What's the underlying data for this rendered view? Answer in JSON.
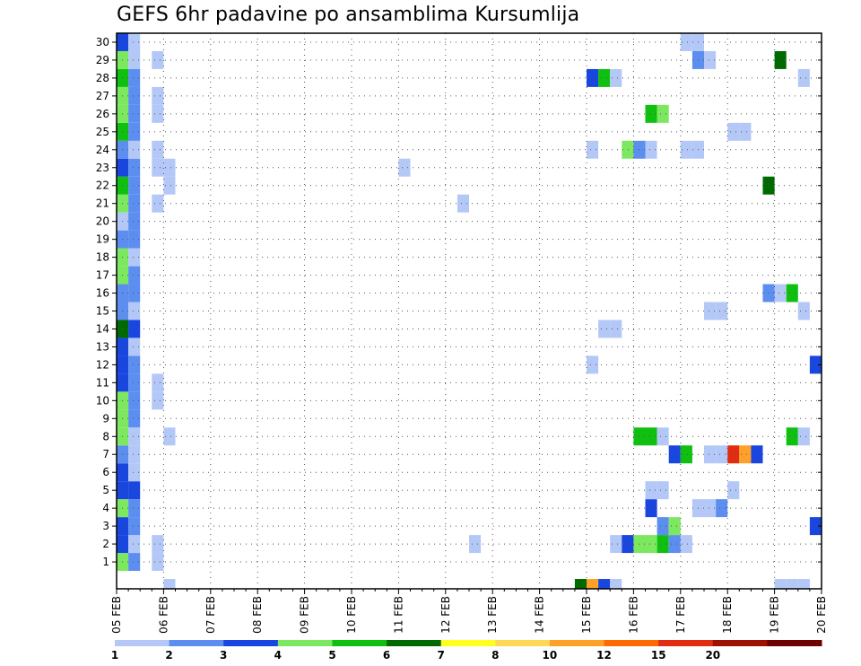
{
  "chart_data": {
    "type": "heatmap",
    "title": "GEFS 6hr padavine po ansamblima Kursumlija",
    "xlabel": "",
    "ylabel": "",
    "x_tick_labels": [
      "05 FEB",
      "06 FEB",
      "07 FEB",
      "08 FEB",
      "09 FEB",
      "10 FEB",
      "11 FEB",
      "12 FEB",
      "13 FEB",
      "14 FEB",
      "15 FEB",
      "16 FEB",
      "17 FEB",
      "18 FEB",
      "19 FEB",
      "20 FEB"
    ],
    "y_tick_labels": [
      "1",
      "2",
      "3",
      "4",
      "5",
      "6",
      "7",
      "8",
      "9",
      "10",
      "11",
      "12",
      "13",
      "14",
      "15",
      "16",
      "17",
      "18",
      "19",
      "20",
      "21",
      "22",
      "23",
      "24",
      "25",
      "26",
      "27",
      "28",
      "29",
      "30"
    ],
    "xlim": [
      0,
      60
    ],
    "ylim": [
      0,
      30
    ],
    "x_unit": "6-hour step from 05 FEB",
    "y_unit": "ensemble member",
    "grid": true,
    "legend": {
      "position": "bottom",
      "labels": [
        "1",
        "2",
        "3",
        "4",
        "5",
        "6",
        "7",
        "8",
        "10",
        "12",
        "15",
        "20"
      ],
      "colors": [
        "#b4c8f8",
        "#5c8ef0",
        "#1a46e0",
        "#7ce860",
        "#10c010",
        "#006a00",
        "#ffff20",
        "#ffd858",
        "#ffa028",
        "#ff6a00",
        "#e02c10",
        "#a01000",
        "#6e0000"
      ]
    },
    "cells": [
      [
        0,
        0,
        4
      ],
      [
        0,
        1,
        3
      ],
      [
        0,
        2,
        3
      ],
      [
        0,
        3,
        4
      ],
      [
        0,
        4,
        3
      ],
      [
        0,
        5,
        3
      ],
      [
        0,
        6,
        2
      ],
      [
        0,
        7,
        4
      ],
      [
        0,
        8,
        4
      ],
      [
        0,
        9,
        4
      ],
      [
        0,
        10,
        3
      ],
      [
        0,
        11,
        3
      ],
      [
        0,
        12,
        3
      ],
      [
        0,
        13,
        6
      ],
      [
        0,
        14,
        2
      ],
      [
        0,
        15,
        2
      ],
      [
        0,
        16,
        4
      ],
      [
        0,
        17,
        4
      ],
      [
        0,
        18,
        2
      ],
      [
        0,
        19,
        1
      ],
      [
        0,
        20,
        4
      ],
      [
        0,
        21,
        5
      ],
      [
        0,
        22,
        3
      ],
      [
        0,
        23,
        2
      ],
      [
        0,
        24,
        5
      ],
      [
        0,
        25,
        4
      ],
      [
        0,
        26,
        4
      ],
      [
        0,
        27,
        5
      ],
      [
        0,
        28,
        4
      ],
      [
        0,
        29,
        3
      ],
      [
        1,
        0,
        2
      ],
      [
        1,
        1,
        1
      ],
      [
        1,
        2,
        2
      ],
      [
        1,
        3,
        2
      ],
      [
        1,
        4,
        3
      ],
      [
        1,
        5,
        1
      ],
      [
        1,
        6,
        1
      ],
      [
        1,
        7,
        1
      ],
      [
        1,
        8,
        2
      ],
      [
        1,
        9,
        2
      ],
      [
        1,
        10,
        2
      ],
      [
        1,
        11,
        2
      ],
      [
        1,
        12,
        1
      ],
      [
        1,
        13,
        3
      ],
      [
        1,
        14,
        1
      ],
      [
        1,
        15,
        2
      ],
      [
        1,
        16,
        2
      ],
      [
        1,
        17,
        1
      ],
      [
        1,
        18,
        2
      ],
      [
        1,
        19,
        2
      ],
      [
        1,
        20,
        2
      ],
      [
        1,
        21,
        2
      ],
      [
        1,
        22,
        2
      ],
      [
        1,
        23,
        1
      ],
      [
        1,
        24,
        2
      ],
      [
        1,
        25,
        2
      ],
      [
        1,
        26,
        2
      ],
      [
        1,
        27,
        2
      ],
      [
        1,
        28,
        1
      ],
      [
        1,
        29,
        1
      ],
      [
        3,
        0,
        1
      ],
      [
        3,
        1,
        1
      ],
      [
        3,
        9,
        1
      ],
      [
        3,
        10,
        1
      ],
      [
        3,
        20,
        1
      ],
      [
        3,
        22,
        1
      ],
      [
        3,
        23,
        1
      ],
      [
        3,
        25,
        1
      ],
      [
        3,
        26,
        1
      ],
      [
        3,
        28,
        1
      ],
      [
        4,
        -1,
        1
      ],
      [
        4,
        7,
        1
      ],
      [
        4,
        21,
        1
      ],
      [
        4,
        22,
        1
      ],
      [
        24,
        22,
        1
      ],
      [
        29,
        20,
        1
      ],
      [
        30,
        1,
        1
      ],
      [
        39,
        -1,
        6
      ],
      [
        40,
        -1,
        9
      ],
      [
        40,
        11,
        1
      ],
      [
        40,
        23,
        1
      ],
      [
        40,
        27,
        3
      ],
      [
        41,
        -1,
        3
      ],
      [
        41,
        13,
        1
      ],
      [
        41,
        27,
        5
      ],
      [
        42,
        -1,
        1
      ],
      [
        42,
        1,
        1
      ],
      [
        42,
        13,
        1
      ],
      [
        42,
        27,
        1
      ],
      [
        43,
        1,
        3
      ],
      [
        43,
        23,
        4
      ],
      [
        44,
        1,
        4
      ],
      [
        44,
        7,
        5
      ],
      [
        44,
        23,
        2
      ],
      [
        45,
        1,
        4
      ],
      [
        45,
        3,
        3
      ],
      [
        45,
        4,
        1
      ],
      [
        45,
        7,
        5
      ],
      [
        45,
        23,
        1
      ],
      [
        45,
        25,
        5
      ],
      [
        46,
        1,
        5
      ],
      [
        46,
        2,
        2
      ],
      [
        46,
        4,
        1
      ],
      [
        46,
        7,
        1
      ],
      [
        46,
        25,
        4
      ],
      [
        47,
        1,
        2
      ],
      [
        47,
        2,
        4
      ],
      [
        47,
        6,
        3
      ],
      [
        48,
        1,
        1
      ],
      [
        48,
        6,
        5
      ],
      [
        48,
        23,
        1
      ],
      [
        48,
        29,
        1
      ],
      [
        49,
        3,
        1
      ],
      [
        49,
        23,
        1
      ],
      [
        49,
        28,
        2
      ],
      [
        49,
        29,
        1
      ],
      [
        50,
        3,
        1
      ],
      [
        50,
        6,
        1
      ],
      [
        50,
        14,
        1
      ],
      [
        50,
        28,
        1
      ],
      [
        51,
        3,
        2
      ],
      [
        51,
        6,
        1
      ],
      [
        51,
        14,
        1
      ],
      [
        52,
        4,
        1
      ],
      [
        52,
        6,
        11
      ],
      [
        52,
        24,
        1
      ],
      [
        53,
        6,
        9
      ],
      [
        53,
        24,
        1
      ],
      [
        54,
        6,
        3
      ],
      [
        55,
        15,
        2
      ],
      [
        55,
        21,
        6
      ],
      [
        56,
        -1,
        1
      ],
      [
        56,
        15,
        1
      ],
      [
        56,
        28,
        6
      ],
      [
        57,
        -1,
        1
      ],
      [
        57,
        7,
        5
      ],
      [
        57,
        15,
        5
      ],
      [
        58,
        -1,
        1
      ],
      [
        58,
        7,
        1
      ],
      [
        58,
        14,
        1
      ],
      [
        58,
        27,
        1
      ],
      [
        59,
        2,
        3
      ],
      [
        59,
        11,
        3
      ]
    ]
  }
}
